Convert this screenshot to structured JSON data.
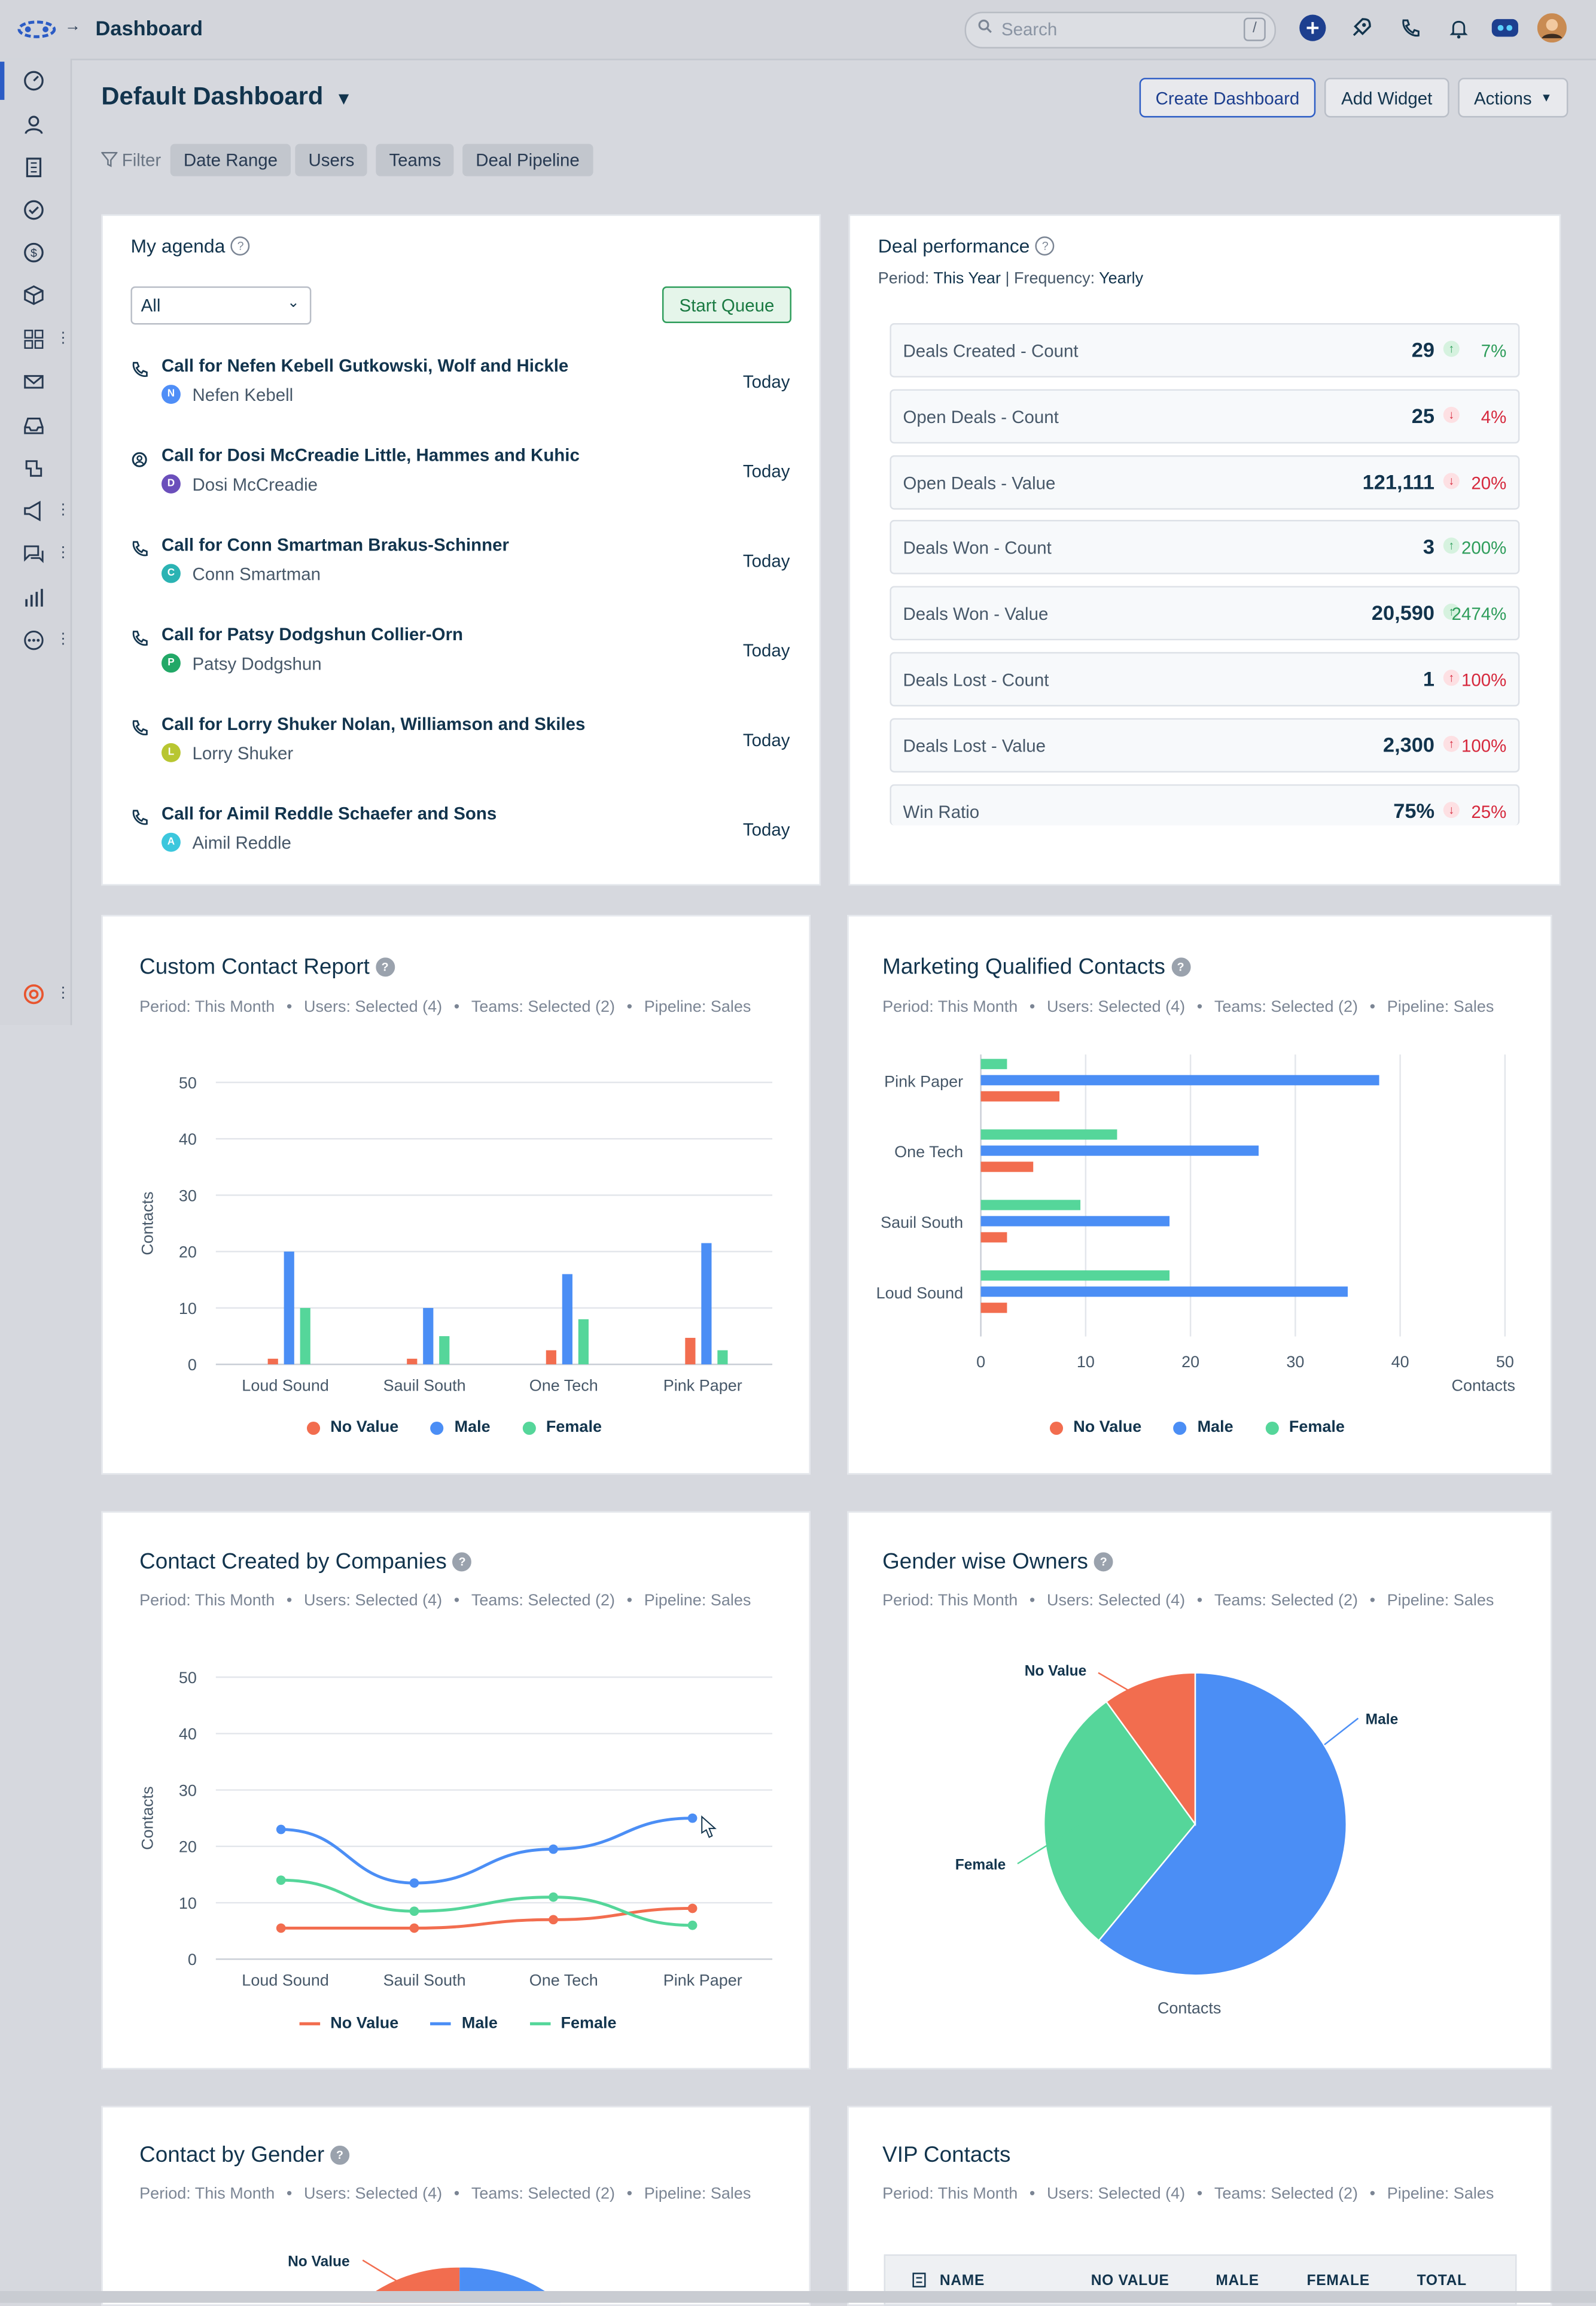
{
  "app": {
    "title": "Dashboard"
  },
  "search": {
    "placeholder": "Search",
    "shortcut": "/"
  },
  "page": {
    "title": "Default Dashboard",
    "buttons": {
      "create": "Create Dashboard",
      "add_widget": "Add Widget",
      "actions": "Actions"
    },
    "filter_label": "Filter",
    "filters": [
      "Date Range",
      "Users",
      "Teams",
      "Deal Pipeline"
    ]
  },
  "agenda": {
    "title": "My agenda",
    "select_value": "All",
    "start_queue": "Start Queue",
    "items": [
      {
        "title": "Call for Nefen Kebell Gutkowski, Wolf and Hickle",
        "initial": "N",
        "name": "Nefen Kebell",
        "date": "Today",
        "color": "#4f8ef7",
        "icon": "phone-icon"
      },
      {
        "title": "Call for Dosi McCreadie Little, Hammes and Kuhic",
        "initial": "D",
        "name": "Dosi McCreadie",
        "date": "Today",
        "color": "#6b4fbb",
        "icon": "meeting-icon"
      },
      {
        "title": "Call for Conn Smartman Brakus-Schinner",
        "initial": "C",
        "name": "Conn Smartman",
        "date": "Today",
        "color": "#2bb3b3",
        "icon": "phone-icon"
      },
      {
        "title": "Call for Patsy Dodgshun Collier-Orn",
        "initial": "P",
        "name": "Patsy Dodgshun",
        "date": "Today",
        "color": "#22a867",
        "icon": "phone-icon"
      },
      {
        "title": "Call for Lorry Shuker Nolan, Williamson and Skiles",
        "initial": "L",
        "name": "Lorry Shuker",
        "date": "Today",
        "color": "#b8c631",
        "icon": "phone-icon"
      },
      {
        "title": "Call for Aimil Reddle Schaefer and Sons",
        "initial": "A",
        "name": "Aimil Reddle",
        "date": "Today",
        "color": "#3cc7dd",
        "icon": "phone-icon"
      }
    ]
  },
  "deal_performance": {
    "title": "Deal performance",
    "period_label": "Period:",
    "period": "This Year",
    "frequency_label": "| Frequency:",
    "frequency": "Yearly",
    "rows": [
      {
        "label": "Deals Created - Count",
        "value": "29",
        "trend": "up",
        "change": "7%"
      },
      {
        "label": "Open Deals - Count",
        "value": "25",
        "trend": "down",
        "change": "4%"
      },
      {
        "label": "Open Deals - Value",
        "value": "121,111",
        "trend": "down",
        "change": "20%"
      },
      {
        "label": "Deals Won - Count",
        "value": "3",
        "trend": "up",
        "change": "200%"
      },
      {
        "label": "Deals Won - Value",
        "value": "20,590",
        "trend": "up",
        "change": "2474%"
      },
      {
        "label": "Deals Lost - Count",
        "value": "1",
        "trend": "up-red",
        "change": "100%"
      },
      {
        "label": "Deals Lost - Value",
        "value": "2,300",
        "trend": "up-red",
        "change": "100%"
      },
      {
        "label": "Win Ratio",
        "value": "75%",
        "trend": "down",
        "change": "25%"
      }
    ]
  },
  "meta": {
    "period": "Period: This Month",
    "users": "Users: Selected (4)",
    "teams": "Teams: Selected (2)",
    "pipeline": "Pipeline: Sales"
  },
  "legend": {
    "no_value": "No Value",
    "male": "Male",
    "female": "Female"
  },
  "colors": {
    "no_value": "#f26d4f",
    "male": "#4b8ef5",
    "female": "#55d69a"
  },
  "widgets": {
    "custom_contact": "Custom Contact Report",
    "mql": "Marketing Qualified Contacts",
    "by_companies": "Contact Created by Companies",
    "gender_owners": "Gender wise Owners",
    "by_gender": "Contact by Gender",
    "vip": "VIP Contacts"
  },
  "vip_table": {
    "headers": [
      "NAME",
      "NO VALUE",
      "MALE",
      "FEMALE",
      "TOTAL"
    ]
  },
  "chart_data": [
    {
      "type": "bar",
      "title": "Custom Contact Report",
      "ylabel": "Contacts",
      "ylim": [
        0,
        50
      ],
      "yticks": [
        0,
        10,
        20,
        30,
        40,
        50
      ],
      "categories": [
        "Loud Sound",
        "Sauil South",
        "One Tech",
        "Pink Paper"
      ],
      "series": [
        {
          "name": "No Value",
          "values": [
            1,
            1,
            2.5,
            4.7
          ]
        },
        {
          "name": "Male",
          "values": [
            20,
            10,
            16,
            21.5
          ]
        },
        {
          "name": "Female",
          "values": [
            10,
            5,
            8,
            2.5
          ]
        }
      ]
    },
    {
      "type": "bar",
      "orientation": "horizontal",
      "title": "Marketing Qualified Contacts",
      "xlabel": "Contacts",
      "xlim": [
        0,
        50
      ],
      "xticks": [
        0,
        10,
        20,
        30,
        40,
        50
      ],
      "categories": [
        "Pink Paper",
        "One Tech",
        "Sauil South",
        "Loud Sound"
      ],
      "series": [
        {
          "name": "Female",
          "values": [
            2.5,
            13,
            9.5,
            18
          ]
        },
        {
          "name": "Male",
          "values": [
            38,
            26.5,
            18,
            35
          ]
        },
        {
          "name": "No Value",
          "values": [
            7.5,
            5,
            2.5,
            2.5
          ]
        }
      ]
    },
    {
      "type": "line",
      "title": "Contact Created by Companies",
      "ylabel": "Contacts",
      "ylim": [
        0,
        50
      ],
      "yticks": [
        0,
        10,
        20,
        30,
        40,
        50
      ],
      "categories": [
        "Loud Sound",
        "Sauil South",
        "One Tech",
        "Pink Paper"
      ],
      "series": [
        {
          "name": "No Value",
          "values": [
            5.5,
            5.5,
            7,
            9
          ]
        },
        {
          "name": "Male",
          "values": [
            23,
            13.5,
            19.5,
            25
          ]
        },
        {
          "name": "Female",
          "values": [
            14,
            8.5,
            11,
            6
          ]
        }
      ]
    },
    {
      "type": "pie",
      "title": "Gender wise Owners",
      "xlabel": "Contacts",
      "labels": [
        "Male",
        "Female",
        "No Value"
      ],
      "values": [
        61,
        29,
        10
      ]
    }
  ]
}
